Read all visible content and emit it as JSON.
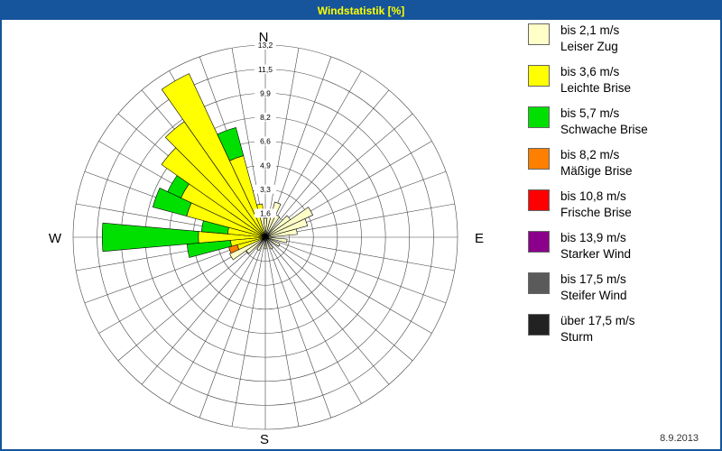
{
  "window": {
    "title": "Windstatistik [%]",
    "date": "8.9.2013"
  },
  "compass": {
    "n": "N",
    "e": "E",
    "s": "S",
    "w": "W"
  },
  "legend": {
    "items": [
      {
        "color": "#FFFFC8",
        "line1": "bis 2,1 m/s",
        "line2": "Leiser Zug"
      },
      {
        "color": "#FFFF00",
        "line1": "bis 3,6 m/s",
        "line2": "Leichte Brise"
      },
      {
        "color": "#00E000",
        "line1": "bis 5,7 m/s",
        "line2": "Schwache Brise"
      },
      {
        "color": "#FF8000",
        "line1": "bis 8,2 m/s",
        "line2": "Mäßige Brise"
      },
      {
        "color": "#FF0000",
        "line1": "bis 10,8 m/s",
        "line2": "Frische Brise"
      },
      {
        "color": "#8B008B",
        "line1": "bis 13,9 m/s",
        "line2": "Starker Wind"
      },
      {
        "color": "#5A5A5A",
        "line1": "bis 17,5 m/s",
        "line2": "Steifer Wind"
      },
      {
        "color": "#222222",
        "line1": "über 17,5 m/s",
        "line2": "Sturm"
      }
    ]
  },
  "chart_data": {
    "type": "windrose",
    "title": "Windstatistik [%]",
    "unit": "%",
    "ring_values": [
      "1,6",
      "3,3",
      "4,9",
      "6,6",
      "8,2",
      "9,9",
      "11,5",
      "13,2"
    ],
    "ring_max": 13.2,
    "sector_width_deg": 10,
    "speed_classes": [
      {
        "id": "leiser",
        "color": "#FFFFC8",
        "label": "bis 2,1 m/s",
        "name": "Leiser Zug"
      },
      {
        "id": "leichte",
        "color": "#FFFF00",
        "label": "bis 3,6 m/s",
        "name": "Leichte Brise"
      },
      {
        "id": "schwache",
        "color": "#00E000",
        "label": "bis 5,7 m/s",
        "name": "Schwache Brise"
      },
      {
        "id": "maessige",
        "color": "#FF8000",
        "label": "bis 8,2 m/s",
        "name": "Mäßige Brise"
      },
      {
        "id": "frische",
        "color": "#FF0000",
        "label": "bis 10,8 m/s",
        "name": "Frische Brise"
      },
      {
        "id": "starker",
        "color": "#8B008B",
        "label": "bis 13,9 m/s",
        "name": "Starker Wind"
      },
      {
        "id": "steifer",
        "color": "#5A5A5A",
        "label": "bis 17,5 m/s",
        "name": "Steifer Wind"
      },
      {
        "id": "sturm",
        "color": "#222222",
        "label": "über 17,5 m/s",
        "name": "Sturm"
      }
    ],
    "wedges": [
      {
        "dir": 350,
        "segments": [
          {
            "class": "leiser",
            "to": 1.4
          },
          {
            "class": "leichte",
            "to": 2.3
          }
        ]
      },
      {
        "dir": 0,
        "segments": [
          {
            "class": "leiser",
            "to": 1.3
          }
        ]
      },
      {
        "dir": 10,
        "segments": [
          {
            "class": "leiser",
            "to": 1.9
          }
        ]
      },
      {
        "dir": 20,
        "segments": [
          {
            "class": "leiser",
            "to": 2.5
          }
        ]
      },
      {
        "dir": 30,
        "segments": [
          {
            "class": "leiser",
            "to": 1.7
          }
        ]
      },
      {
        "dir": 50,
        "segments": [
          {
            "class": "leiser",
            "to": 2.1
          }
        ]
      },
      {
        "dir": 60,
        "segments": [
          {
            "class": "leiser",
            "to": 3.6
          }
        ]
      },
      {
        "dir": 70,
        "segments": [
          {
            "class": "leiser",
            "to": 3.0
          }
        ]
      },
      {
        "dir": 80,
        "segments": [
          {
            "class": "leiser",
            "to": 2.2
          }
        ]
      },
      {
        "dir": 100,
        "segments": [
          {
            "class": "leiser",
            "to": 1.5
          }
        ]
      },
      {
        "dir": 120,
        "segments": [
          {
            "class": "leiser",
            "to": 1.1
          }
        ]
      },
      {
        "dir": 150,
        "segments": [
          {
            "class": "leiser",
            "to": 0.9
          }
        ]
      },
      {
        "dir": 180,
        "segments": [
          {
            "class": "leiser",
            "to": 0.8
          }
        ]
      },
      {
        "dir": 210,
        "segments": [
          {
            "class": "leiser",
            "to": 1.0
          }
        ]
      },
      {
        "dir": 230,
        "segments": [
          {
            "class": "leiser",
            "to": 1.6
          }
        ]
      },
      {
        "dir": 240,
        "segments": [
          {
            "class": "leiser",
            "to": 2.7
          }
        ]
      },
      {
        "dir": 250,
        "segments": [
          {
            "class": "leichte",
            "to": 2.0
          },
          {
            "class": "maessige",
            "to": 2.6
          }
        ]
      },
      {
        "dir": 260,
        "segments": [
          {
            "class": "leichte",
            "to": 2.4
          },
          {
            "class": "schwache",
            "to": 5.4
          }
        ]
      },
      {
        "dir": 270,
        "segments": [
          {
            "class": "leichte",
            "to": 4.6
          },
          {
            "class": "schwache",
            "to": 11.2
          }
        ]
      },
      {
        "dir": 280,
        "segments": [
          {
            "class": "leichte",
            "to": 2.6
          },
          {
            "class": "schwache",
            "to": 4.4
          }
        ]
      },
      {
        "dir": 290,
        "segments": [
          {
            "class": "leichte",
            "to": 5.6
          },
          {
            "class": "schwache",
            "to": 8.0
          }
        ]
      },
      {
        "dir": 300,
        "segments": [
          {
            "class": "leichte",
            "to": 6.4
          },
          {
            "class": "schwache",
            "to": 7.4
          }
        ]
      },
      {
        "dir": 310,
        "segments": [
          {
            "class": "leichte",
            "to": 8.7
          }
        ]
      },
      {
        "dir": 320,
        "segments": [
          {
            "class": "leichte",
            "to": 9.7
          }
        ]
      },
      {
        "dir": 330,
        "segments": [
          {
            "class": "leichte",
            "to": 12.4
          }
        ]
      },
      {
        "dir": 340,
        "segments": [
          {
            "class": "leichte",
            "to": 5.8
          },
          {
            "class": "schwache",
            "to": 7.8
          }
        ]
      }
    ]
  }
}
